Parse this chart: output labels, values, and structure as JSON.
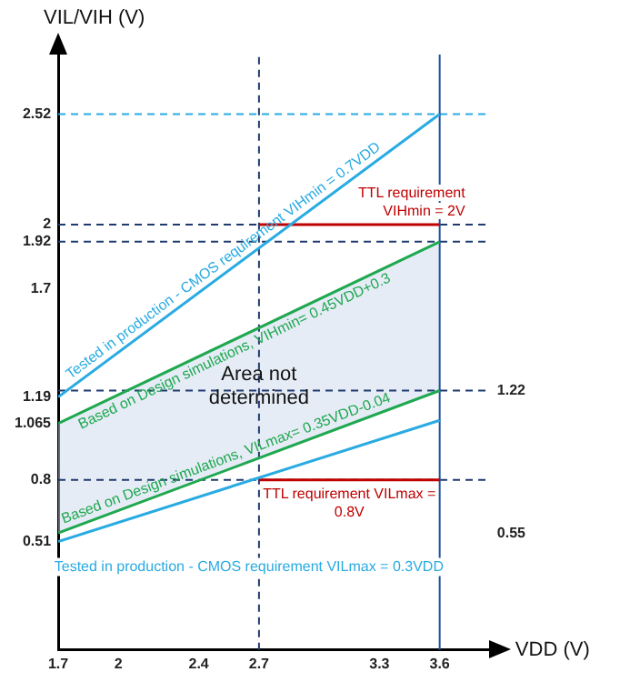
{
  "chart_data": {
    "type": "line",
    "xlabel": "VDD (V)",
    "ylabel": "VIL/VIH (V)",
    "xlim": [
      1.7,
      3.85
    ],
    "xticks": [
      1.7,
      2.0,
      2.4,
      2.7,
      3.3,
      3.6
    ],
    "ylim": [
      0,
      2.8
    ],
    "yticks": [
      0.51,
      0.8,
      1.065,
      1.19,
      1.7,
      1.92,
      2.0,
      2.52
    ],
    "y2lim": [
      0,
      2.8
    ],
    "y2ticks": [
      0.55,
      1.22
    ],
    "series": [
      {
        "name": "Tested in production - CMOS requirement VIHmin = 0.7VDD",
        "color": "#29abe2",
        "x": [
          1.7,
          3.6
        ],
        "values": [
          1.19,
          2.52
        ]
      },
      {
        "name": "Based on Design simulations, VIHmin= 0.45VDD+0.3",
        "color": "#1fa84f",
        "x": [
          1.7,
          3.6
        ],
        "values": [
          1.065,
          1.92
        ],
        "lower": [
          0.55,
          1.22
        ],
        "upper": [
          1.065,
          1.92
        ]
      },
      {
        "name": "Based on Design simulations, VILmax= 0.35VDD-0.04",
        "color": "#1fa84f",
        "x": [
          1.7,
          3.6
        ],
        "values": [
          0.55,
          1.22
        ]
      },
      {
        "name": "Tested in production - CMOS requirement VILmax = 0.3VDD",
        "color": "#29abe2",
        "x": [
          1.7,
          3.6
        ],
        "values": [
          0.51,
          1.08
        ]
      },
      {
        "name": "TTL requirement VIHmin = 2V",
        "color": "#c00000",
        "x": [
          2.7,
          3.6
        ],
        "values": [
          2.0,
          2.0
        ]
      },
      {
        "name": "TTL requirement VILmax = 0.8V",
        "color": "#c00000",
        "x": [
          2.7,
          3.6
        ],
        "values": [
          0.8,
          0.8
        ]
      }
    ],
    "ref_lines": [
      {
        "axis": "y",
        "value": 2.52,
        "color": "#29abe2",
        "line_style": "dashed"
      },
      {
        "axis": "y",
        "value": 2.0,
        "color": "#1f3a6e",
        "line_style": "dashed"
      },
      {
        "axis": "y",
        "value": 1.92,
        "color": "#1f3a6e",
        "line_style": "dashed"
      },
      {
        "axis": "y",
        "value": 1.22,
        "color": "#1f3a6e",
        "line_style": "dashed"
      },
      {
        "axis": "y",
        "value": 0.8,
        "color": "#1f3a6e",
        "line_style": "dashed"
      },
      {
        "axis": "x",
        "value": 2.7,
        "color": "#1f3a6e",
        "line_style": "dashed"
      },
      {
        "axis": "x",
        "value": 3.6,
        "color": "#1f4e9c",
        "line_style": "solid"
      }
    ],
    "annotations": [
      {
        "text": "Area not determined",
        "x": 2.7,
        "y": 1.24
      }
    ],
    "grid": false,
    "legend": false
  }
}
